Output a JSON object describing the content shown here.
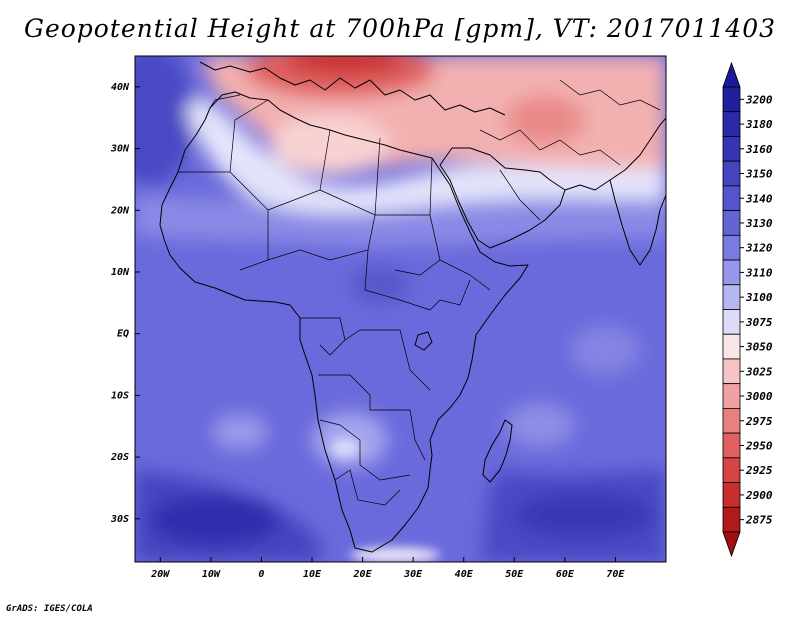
{
  "title": "Geopotential Height at 700hPa [gpm], VT: 2017011403",
  "credit": "GrADS: IGES/COLA",
  "map": {
    "region": "Africa",
    "lon_range": [
      -25,
      80
    ],
    "lat_range": [
      -37,
      45
    ],
    "lat_ticks": [
      {
        "value": 40,
        "label": "40N"
      },
      {
        "value": 30,
        "label": "30N"
      },
      {
        "value": 20,
        "label": "20N"
      },
      {
        "value": 10,
        "label": "10N"
      },
      {
        "value": 0,
        "label": "EQ"
      },
      {
        "value": -10,
        "label": "10S"
      },
      {
        "value": -20,
        "label": "20S"
      },
      {
        "value": -30,
        "label": "30S"
      }
    ],
    "lon_ticks": [
      {
        "value": -20,
        "label": "20W"
      },
      {
        "value": -10,
        "label": "10W"
      },
      {
        "value": 0,
        "label": "0"
      },
      {
        "value": 10,
        "label": "10E"
      },
      {
        "value": 20,
        "label": "20E"
      },
      {
        "value": 30,
        "label": "30E"
      },
      {
        "value": 40,
        "label": "40E"
      },
      {
        "value": 50,
        "label": "50E"
      },
      {
        "value": 60,
        "label": "60E"
      },
      {
        "value": 70,
        "label": "70E"
      }
    ]
  },
  "colorbar": {
    "top_color": "#1a1a9a",
    "bottom_color": "#a01010",
    "levels": [
      {
        "label": "3200",
        "color": "#20209e"
      },
      {
        "label": "3180",
        "color": "#2a2aa8"
      },
      {
        "label": "3160",
        "color": "#3636b4"
      },
      {
        "label": "3150",
        "color": "#4444c0"
      },
      {
        "label": "3140",
        "color": "#5454cc"
      },
      {
        "label": "3130",
        "color": "#6464d6"
      },
      {
        "label": "3120",
        "color": "#7a7ae0"
      },
      {
        "label": "3110",
        "color": "#9696ea"
      },
      {
        "label": "3100",
        "color": "#b6b6f2"
      },
      {
        "label": "3075",
        "color": "#dcdcfa"
      },
      {
        "label": "3050",
        "color": "#fbe6e6"
      },
      {
        "label": "3025",
        "color": "#f6c4c4"
      },
      {
        "label": "3000",
        "color": "#f0a2a2"
      },
      {
        "label": "2975",
        "color": "#e88080"
      },
      {
        "label": "2950",
        "color": "#e06060"
      },
      {
        "label": "2925",
        "color": "#d64444"
      },
      {
        "label": "2900",
        "color": "#c82e2e"
      },
      {
        "label": "2875",
        "color": "#b01a1a"
      }
    ]
  }
}
